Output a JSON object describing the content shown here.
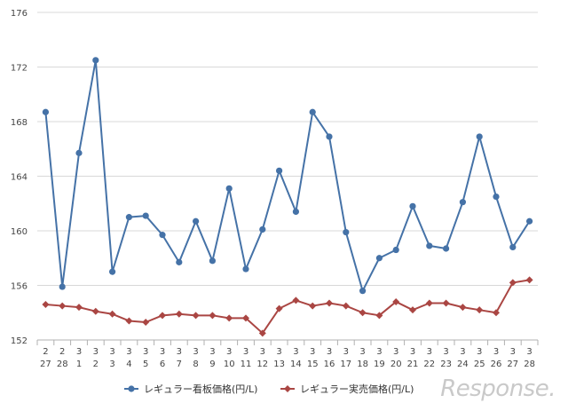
{
  "chart_data": {
    "type": "line",
    "categories": [
      [
        "2",
        "27"
      ],
      [
        "2",
        "28"
      ],
      [
        "3",
        "1"
      ],
      [
        "3",
        "2"
      ],
      [
        "3",
        "3"
      ],
      [
        "3",
        "4"
      ],
      [
        "3",
        "5"
      ],
      [
        "3",
        "6"
      ],
      [
        "3",
        "7"
      ],
      [
        "3",
        "8"
      ],
      [
        "3",
        "9"
      ],
      [
        "3",
        "10"
      ],
      [
        "3",
        "11"
      ],
      [
        "3",
        "12"
      ],
      [
        "3",
        "13"
      ],
      [
        "3",
        "14"
      ],
      [
        "3",
        "15"
      ],
      [
        "3",
        "16"
      ],
      [
        "3",
        "17"
      ],
      [
        "3",
        "18"
      ],
      [
        "3",
        "19"
      ],
      [
        "3",
        "20"
      ],
      [
        "3",
        "21"
      ],
      [
        "3",
        "22"
      ],
      [
        "3",
        "23"
      ],
      [
        "3",
        "24"
      ],
      [
        "3",
        "25"
      ],
      [
        "3",
        "26"
      ],
      [
        "3",
        "27"
      ],
      [
        "3",
        "28"
      ]
    ],
    "series": [
      {
        "name": "レギュラー看板価格(円/L)",
        "color": "#4572a7",
        "marker": "circle",
        "values": [
          168.7,
          155.9,
          165.7,
          172.5,
          157.0,
          161.0,
          161.1,
          159.7,
          157.7,
          160.7,
          157.8,
          163.1,
          157.2,
          160.1,
          164.4,
          161.4,
          168.7,
          166.9,
          159.9,
          155.6,
          158.0,
          158.6,
          161.8,
          158.9,
          158.7,
          162.1,
          166.9,
          162.5,
          158.8,
          160.7
        ]
      },
      {
        "name": "レギュラー実売価格(円/L)",
        "color": "#aa4643",
        "marker": "diamond",
        "values": [
          154.6,
          154.5,
          154.4,
          154.1,
          153.9,
          153.4,
          153.3,
          153.8,
          153.9,
          153.8,
          153.8,
          153.6,
          153.6,
          152.5,
          154.3,
          154.9,
          154.5,
          154.7,
          154.5,
          154.0,
          153.8,
          154.8,
          154.2,
          154.7,
          154.7,
          154.4,
          154.2,
          154.0,
          156.2,
          156.4
        ]
      }
    ],
    "ylim": [
      152,
      176
    ],
    "yticks": [
      152,
      156,
      160,
      164,
      168,
      172,
      176
    ],
    "grid": true,
    "legend": "bottom"
  },
  "watermark": "Response."
}
